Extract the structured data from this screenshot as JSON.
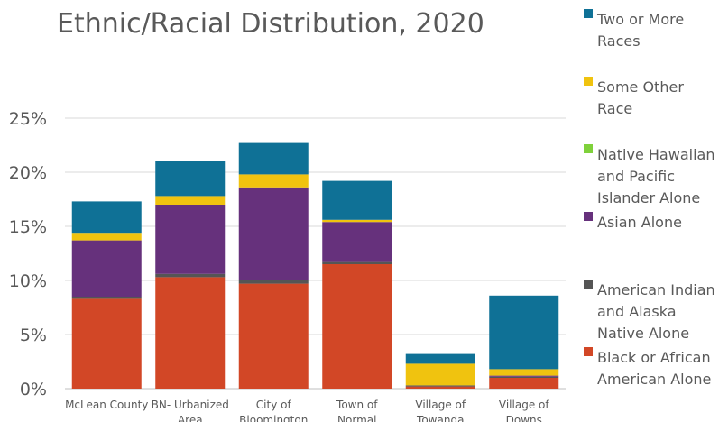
{
  "chart_data": {
    "type": "bar",
    "stacked": true,
    "title": "Ethnic/Racial Distribution, 2020",
    "xlabel": "",
    "ylabel": "",
    "ylim": [
      0,
      0.25
    ],
    "yticks": [
      "0%",
      "5%",
      "10%",
      "15%",
      "20%",
      "25%"
    ],
    "grid": true,
    "legend_position": "right",
    "categories": [
      [
        "McLean County"
      ],
      [
        "BN- Urbanized",
        "Area"
      ],
      [
        "City of",
        "Bloomington"
      ],
      [
        "Town of",
        "Normal"
      ],
      [
        "Village of",
        "Towanda"
      ],
      [
        "Village of",
        "Downs"
      ]
    ],
    "series": [
      {
        "name": "Black or African American Alone",
        "color": "#d24726",
        "values": [
          0.083,
          0.103,
          0.097,
          0.115,
          0.002,
          0.01
        ]
      },
      {
        "name": "American Indian and Alaska Native Alone",
        "color": "#555555",
        "values": [
          0.002,
          0.003,
          0.003,
          0.002,
          0.001,
          0.001
        ]
      },
      {
        "name": "Asian Alone",
        "color": "#66317c",
        "values": [
          0.052,
          0.064,
          0.086,
          0.037,
          0.0,
          0.001
        ]
      },
      {
        "name": "Native Hawaiian and Pacific Islander Alone",
        "color": "#7fd13b",
        "values": [
          0.0,
          0.0,
          0.0,
          0.0,
          0.0,
          0.0
        ]
      },
      {
        "name": "Some Other Race",
        "color": "#f0c30f",
        "values": [
          0.007,
          0.008,
          0.012,
          0.002,
          0.02,
          0.006
        ]
      },
      {
        "name": "Two or More Races",
        "color": "#0f7196",
        "values": [
          0.029,
          0.032,
          0.029,
          0.036,
          0.009,
          0.068
        ]
      }
    ],
    "legend_items": [
      {
        "series": "Two or More Races",
        "lines": [
          "Two or More",
          "Races"
        ]
      },
      {
        "series": "Some Other Race",
        "lines": [
          "Some Other",
          "Race"
        ]
      },
      {
        "series": "Native Hawaiian and Pacific Islander Alone",
        "lines": [
          "Native Hawaiian",
          "and Pacific",
          "Islander Alone"
        ]
      },
      {
        "series": "Asian Alone",
        "lines": [
          "Asian Alone"
        ]
      },
      {
        "series": "American Indian and Alaska Native Alone",
        "lines": [
          "American Indian",
          "and Alaska",
          "Native Alone"
        ]
      },
      {
        "series": "Black or African American Alone",
        "lines": [
          "Black or African",
          "American Alone"
        ]
      }
    ]
  }
}
